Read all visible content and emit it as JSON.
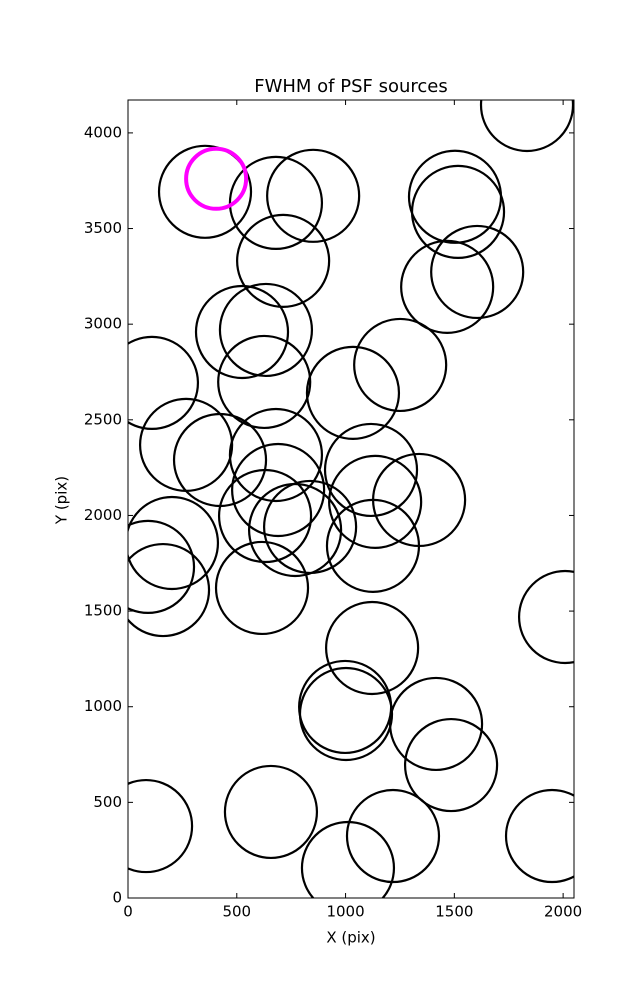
{
  "chart_data": {
    "type": "scatter",
    "title": "FWHM of PSF sources",
    "x_label": "X (pix)",
    "y_label": "Y (pix)",
    "xlim": [
      0,
      2050
    ],
    "ylim": [
      0,
      4172
    ],
    "xticks": [
      0,
      500,
      1000,
      1500,
      2000
    ],
    "yticks": [
      0,
      500,
      1000,
      1500,
      2000,
      2500,
      3000,
      3500,
      4000
    ],
    "grid": false,
    "series": [
      {
        "color": "#000000",
        "x": [
          354,
          680,
          851,
          713,
          1503,
          1517,
          1605,
          1467,
          1834,
          524,
          634,
          110,
          626,
          1034,
          1251,
          267,
          423,
          680,
          1117,
          690,
          630,
          837,
          768,
          1136,
          1338,
          1126,
          202,
          92,
          161,
          616,
          2009,
          1122,
          998,
          1002,
          1416,
          1485,
          83,
          657,
          1218,
          1011,
          1949
        ],
        "y": [
          3692,
          3634,
          3671,
          3331,
          3666,
          3587,
          3273,
          3195,
          4146,
          2959,
          2970,
          2693,
          2698,
          2641,
          2787,
          2369,
          2290,
          2316,
          2238,
          2133,
          1997,
          1940,
          1924,
          2071,
          2081,
          1841,
          1856,
          1731,
          1610,
          1621,
          1469,
          1307,
          999,
          962,
          910,
          695,
          376,
          450,
          324,
          157,
          324
        ]
      },
      {
        "color": "#ff00ff",
        "x": [
          405
        ],
        "y": [
          3760
        ]
      }
    ]
  }
}
